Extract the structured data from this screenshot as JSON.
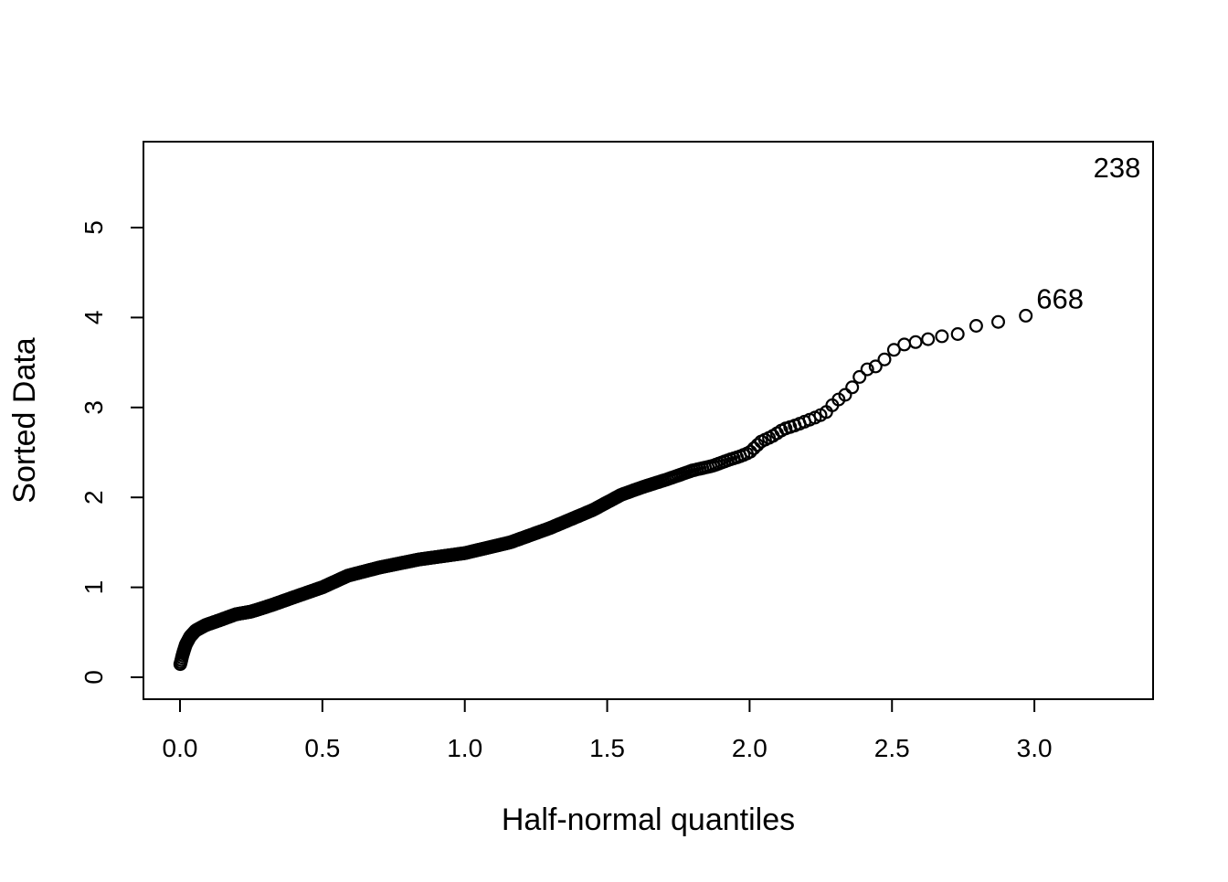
{
  "chart_data": {
    "type": "scatter",
    "title": "",
    "xlabel": "Half-normal quantiles",
    "ylabel": "Sorted Data",
    "x_tick_labels": [
      "0.0",
      "0.5",
      "1.0",
      "1.5",
      "2.0",
      "2.5",
      "3.0"
    ],
    "x_tick_values": [
      0.0,
      0.5,
      1.0,
      1.5,
      2.0,
      2.5,
      3.0
    ],
    "y_tick_labels": [
      "0",
      "1",
      "2",
      "3",
      "4",
      "5"
    ],
    "y_tick_values": [
      0,
      1,
      2,
      3,
      4,
      5
    ],
    "xlim": [
      -0.13,
      3.42
    ],
    "ylim": [
      -0.24,
      5.96
    ],
    "grid": false,
    "legend": "none",
    "marker": "open-circle",
    "point_color": "#000000",
    "background_color": "#ffffff",
    "n_points": 668,
    "n_circle_points": 666,
    "curve_anchors": {
      "q": [
        0.0,
        0.004,
        0.01,
        0.02,
        0.035,
        0.055,
        0.09,
        0.14,
        0.196,
        0.25,
        0.32,
        0.4,
        0.5,
        0.59,
        0.7,
        0.84,
        1.0,
        1.16,
        1.3,
        1.45,
        1.55,
        1.63,
        1.71,
        1.8,
        1.87,
        1.93,
        1.97,
        2.0,
        2.04,
        2.08,
        2.12,
        2.16,
        2.2,
        2.24,
        2.27,
        2.3,
        2.34,
        2.37,
        2.4,
        2.44,
        2.48,
        2.51,
        2.55,
        2.59,
        2.64,
        2.69,
        2.74,
        2.81,
        2.87,
        2.92,
        2.97
      ],
      "v": [
        0.135,
        0.18,
        0.26,
        0.36,
        0.45,
        0.52,
        0.58,
        0.635,
        0.7,
        0.73,
        0.8,
        0.89,
        1.0,
        1.13,
        1.22,
        1.31,
        1.38,
        1.5,
        1.66,
        1.86,
        2.03,
        2.12,
        2.2,
        2.3,
        2.35,
        2.42,
        2.46,
        2.5,
        2.62,
        2.68,
        2.76,
        2.8,
        2.85,
        2.9,
        2.95,
        3.06,
        3.15,
        3.26,
        3.41,
        3.45,
        3.55,
        3.65,
        3.71,
        3.73,
        3.77,
        3.8,
        3.82,
        3.93,
        3.95,
        3.98,
        4.02
      ]
    },
    "labeled_points": [
      {
        "label": "238",
        "q": 3.29,
        "v": 5.67
      },
      {
        "label": "668",
        "q": 3.09,
        "v": 4.21
      }
    ],
    "max_circle_quantile": 2.97
  }
}
